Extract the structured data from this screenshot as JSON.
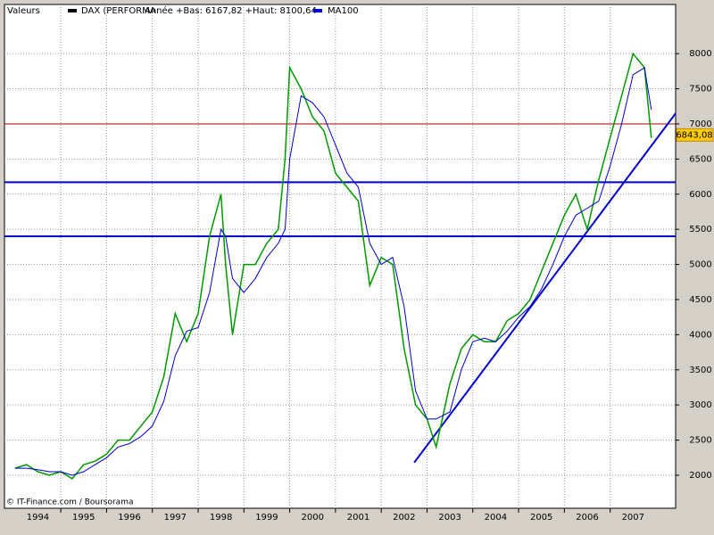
{
  "chart_data": {
    "type": "line",
    "header": "Valeurs",
    "subtitle": "Année +Bas: 6167,82 +Haut: 8100,64",
    "source": "© IT-Finance.com / Boursorama",
    "x": [
      1994.0,
      1994.25,
      1994.5,
      1994.75,
      1995.0,
      1995.25,
      1995.5,
      1995.75,
      1996.0,
      1996.25,
      1996.5,
      1996.75,
      1997.0,
      1997.25,
      1997.5,
      1997.75,
      1998.0,
      1998.25,
      1998.5,
      1998.6,
      1998.75,
      1999.0,
      1999.25,
      1999.5,
      1999.75,
      1999.9,
      2000.0,
      2000.25,
      2000.5,
      2000.75,
      2001.0,
      2001.25,
      2001.5,
      2001.75,
      2002.0,
      2002.25,
      2002.5,
      2002.75,
      2003.0,
      2003.2,
      2003.5,
      2003.75,
      2004.0,
      2004.25,
      2004.5,
      2004.75,
      2005.0,
      2005.25,
      2005.5,
      2005.75,
      2006.0,
      2006.25,
      2006.5,
      2006.75,
      2007.0,
      2007.25,
      2007.5,
      2007.75,
      2007.9
    ],
    "series": [
      {
        "name": "DAX (PERFORMA",
        "color": "#009900",
        "legend_color": "#000000",
        "values": [
          2100,
          2150,
          2050,
          2000,
          2050,
          1950,
          2150,
          2200,
          2300,
          2500,
          2500,
          2700,
          2900,
          3400,
          4300,
          3900,
          4300,
          5400,
          6000,
          5000,
          4000,
          5000,
          5000,
          5300,
          5500,
          6500,
          7800,
          7500,
          7100,
          6900,
          6300,
          6100,
          5900,
          4700,
          5100,
          5000,
          3800,
          3000,
          2800,
          2400,
          3300,
          3800,
          4000,
          3900,
          3900,
          4200,
          4300,
          4500,
          4900,
          5300,
          5700,
          6000,
          5500,
          6200,
          6800,
          7400,
          8000,
          7800,
          6800
        ]
      },
      {
        "name": "MA100",
        "color": "#0000cc",
        "legend_color": "#0000cc",
        "values": [
          2100,
          2100,
          2080,
          2050,
          2050,
          2000,
          2050,
          2150,
          2250,
          2400,
          2450,
          2550,
          2700,
          3050,
          3700,
          4050,
          4100,
          4600,
          5500,
          5400,
          4800,
          4600,
          4800,
          5100,
          5300,
          5500,
          6500,
          7400,
          7300,
          7100,
          6700,
          6300,
          6100,
          5300,
          5000,
          5100,
          4400,
          3200,
          2800,
          2800,
          2900,
          3500,
          3900,
          3950,
          3900,
          4050,
          4250,
          4400,
          4650,
          5000,
          5400,
          5700,
          5800,
          5900,
          6400,
          7000,
          7700,
          7800,
          7200
        ]
      }
    ],
    "hlines": [
      {
        "value": 7000,
        "color": "#aa0000"
      },
      {
        "value": 6170,
        "color": "#0000cc"
      },
      {
        "value": 5400,
        "color": "#0000cc"
      }
    ],
    "trendline": {
      "x": [
        2002.72,
        2008.43
      ],
      "y": [
        2180,
        7150
      ],
      "color": "#0000cc"
    },
    "last": {
      "value": 6843.08,
      "label": "6843,08"
    },
    "xlim": [
      1993.77,
      2008.43
    ],
    "ylim": [
      1530,
      8700
    ],
    "xticks": [
      {
        "value": 1994.5,
        "label": "1994"
      },
      {
        "value": 1995.5,
        "label": "1995"
      },
      {
        "value": 1996.5,
        "label": "1996"
      },
      {
        "value": 1997.5,
        "label": "1997"
      },
      {
        "value": 1998.5,
        "label": "1998"
      },
      {
        "value": 1999.5,
        "label": "1999"
      },
      {
        "value": 2000.5,
        "label": "2000"
      },
      {
        "value": 2001.5,
        "label": "2001"
      },
      {
        "value": 2002.5,
        "label": "2002"
      },
      {
        "value": 2003.5,
        "label": "2003"
      },
      {
        "value": 2004.5,
        "label": "2004"
      },
      {
        "value": 2005.5,
        "label": "2005"
      },
      {
        "value": 2006.5,
        "label": "2006"
      },
      {
        "value": 2007.5,
        "label": "2007"
      }
    ],
    "xgrid": [
      1995,
      1996,
      1997,
      1998,
      1999,
      2000,
      2001,
      2002,
      2003,
      2004,
      2005,
      2006,
      2007
    ],
    "yticks": [
      2000,
      2500,
      3000,
      3500,
      4000,
      4500,
      5000,
      5500,
      6000,
      6500,
      7000,
      7500,
      8000
    ],
    "grid": true
  }
}
